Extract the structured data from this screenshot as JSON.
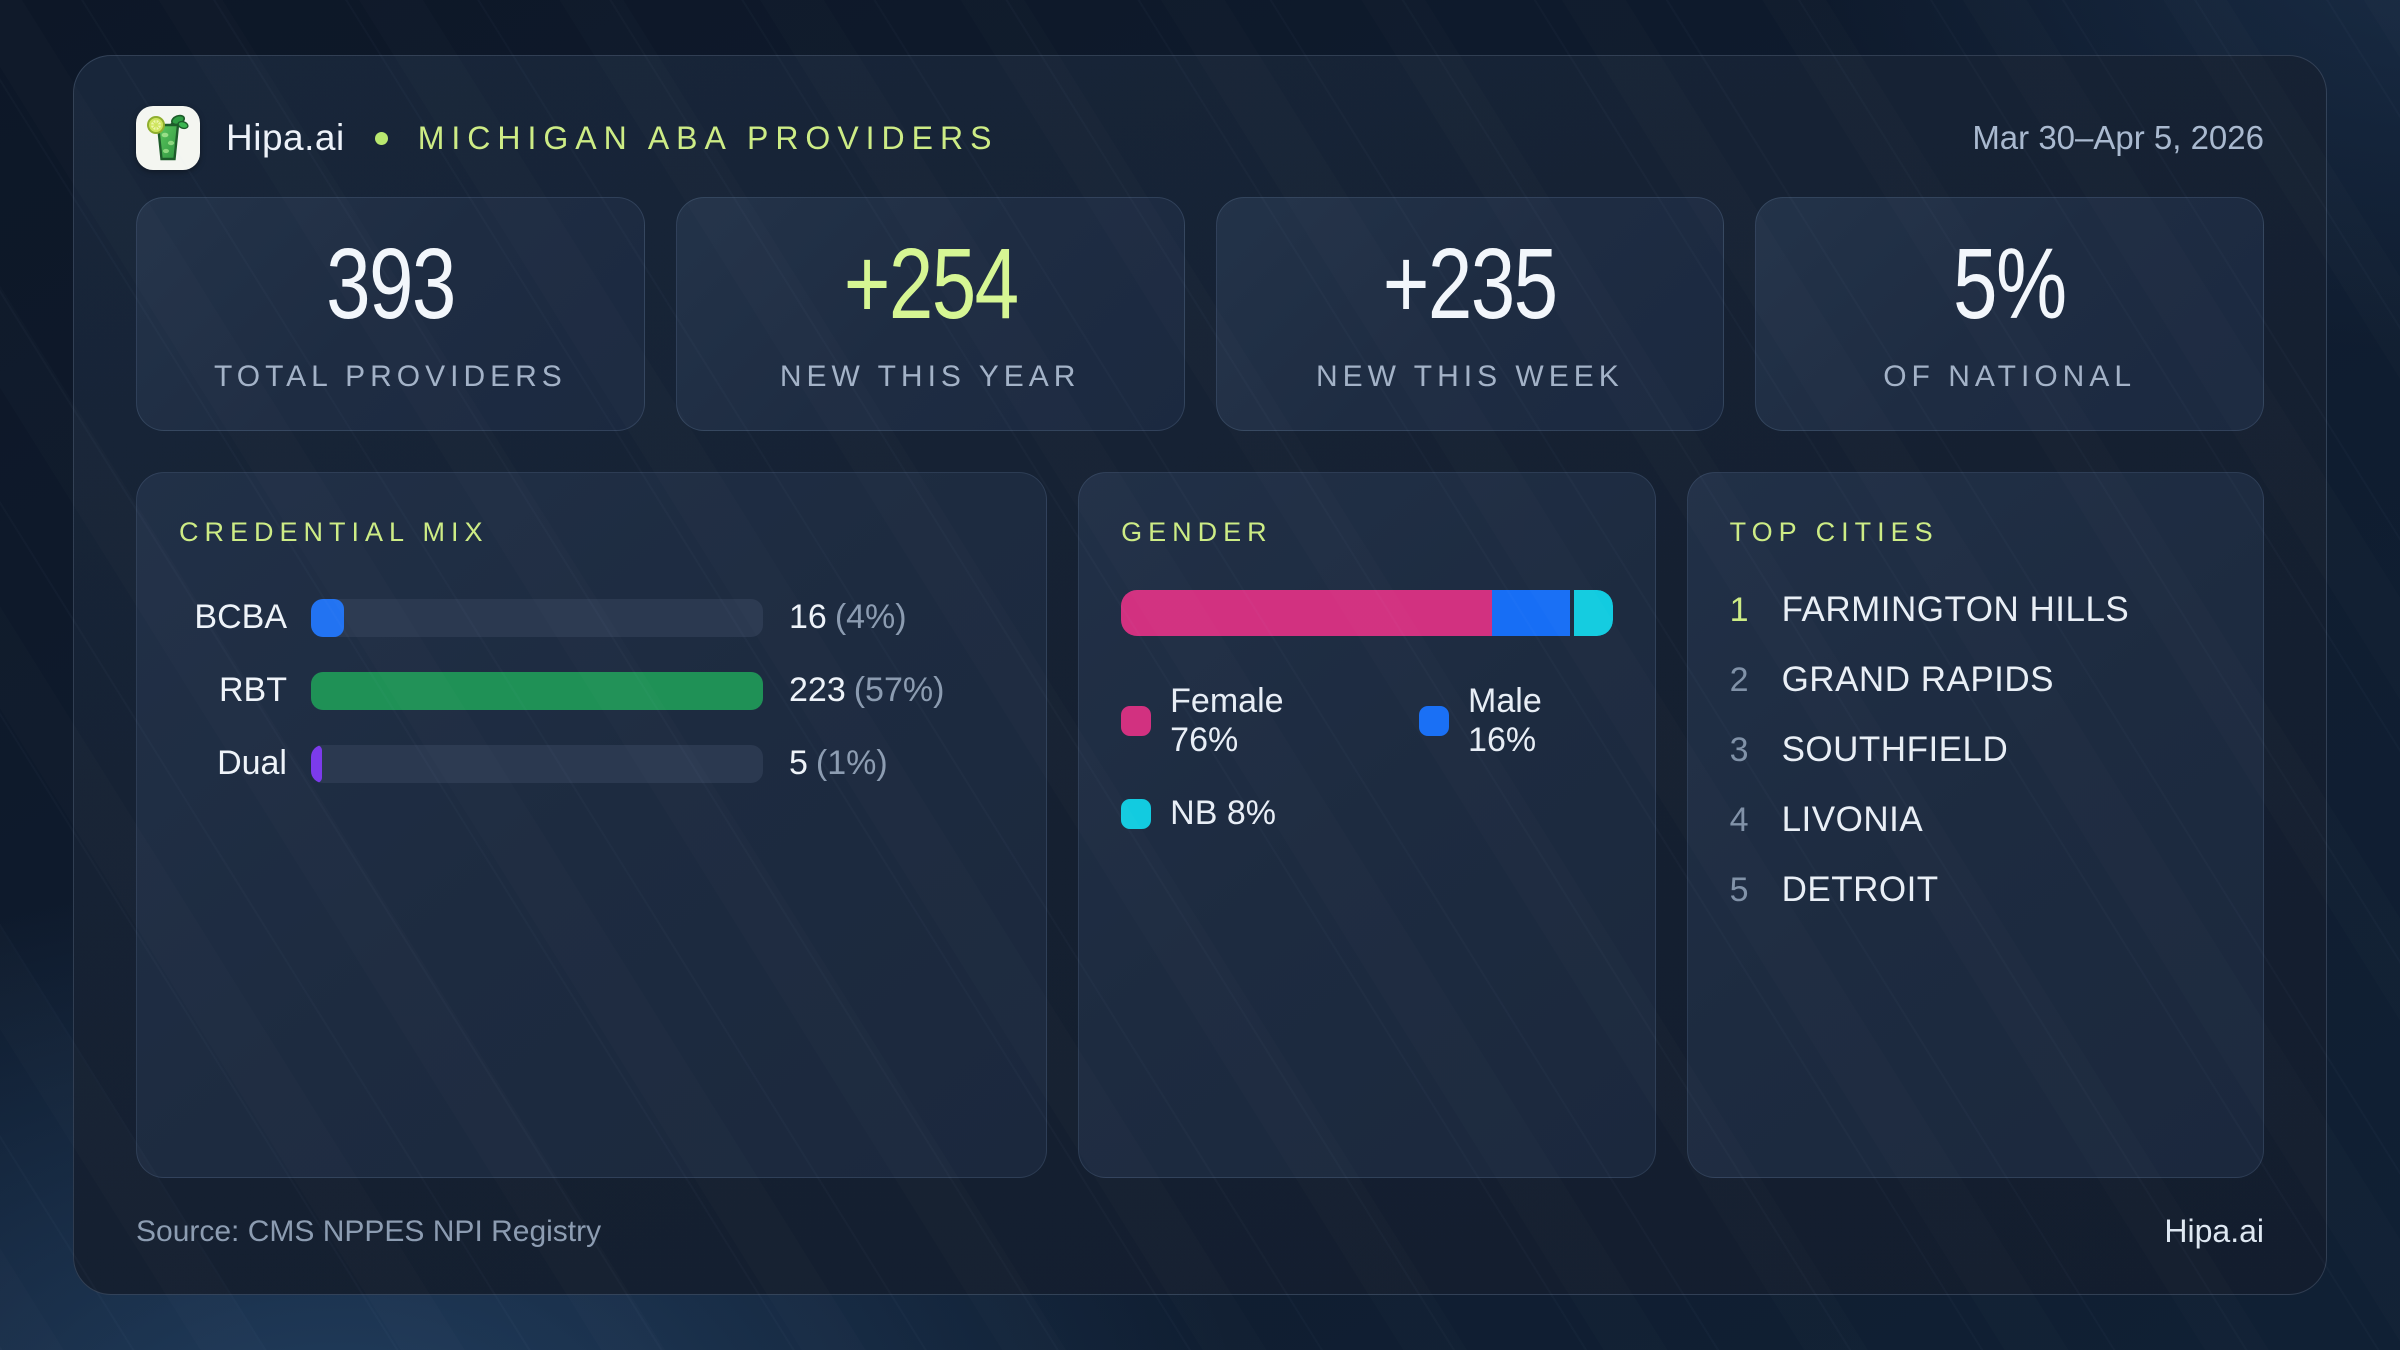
{
  "header": {
    "brand": "Hipa.ai",
    "title": "MICHIGAN ABA PROVIDERS",
    "date_range": "Mar 30–Apr 5, 2026"
  },
  "accent_color": "#cdec85",
  "stats": [
    {
      "value": "393",
      "label": "TOTAL PROVIDERS",
      "value_color": "#f2f6fb"
    },
    {
      "value": "+254",
      "label": "NEW THIS YEAR",
      "value_color": "#d6f693"
    },
    {
      "value": "+235",
      "label": "NEW THIS WEEK",
      "value_color": "#f2f6fb"
    },
    {
      "value": "5%",
      "label": "OF NATIONAL",
      "value_color": "#f2f6fb"
    }
  ],
  "credential_mix": {
    "title": "CREDENTIAL MIX",
    "rows": [
      {
        "label": "BCBA",
        "value_text": "16",
        "pct_text": "(4%)",
        "width_pct": 7.2,
        "color": "#2273f2"
      },
      {
        "label": "RBT",
        "value_text": "223",
        "pct_text": "(57%)",
        "width_pct": 100,
        "color": "#1f9156"
      },
      {
        "label": "Dual",
        "value_text": "5",
        "pct_text": "(1%)",
        "width_pct": 2.4,
        "color": "#7c3bec"
      }
    ]
  },
  "gender": {
    "title": "GENDER",
    "segments": [
      {
        "label": "Female",
        "width_pct": 76,
        "color": "#d23180"
      },
      {
        "label": "Male",
        "width_pct": 16,
        "color": "#176ef5"
      },
      {
        "label": "NB",
        "width_pct": 8,
        "color": "#12cbe0"
      }
    ],
    "legend": [
      {
        "text": "Female 76%",
        "color": "#d23180"
      },
      {
        "text": "Male 16%",
        "color": "#176ef5"
      },
      {
        "text": "NB 8%",
        "color": "#12cbe0"
      }
    ]
  },
  "top_cities": {
    "title": "TOP CITIES",
    "items": [
      {
        "rank": "1",
        "name": "FARMINGTON HILLS",
        "rank_color": "#cdec85"
      },
      {
        "rank": "2",
        "name": "GRAND RAPIDS",
        "rank_color": "#8192a8"
      },
      {
        "rank": "3",
        "name": "SOUTHFIELD",
        "rank_color": "#8192a8"
      },
      {
        "rank": "4",
        "name": "LIVONIA",
        "rank_color": "#8192a8"
      },
      {
        "rank": "5",
        "name": "DETROIT",
        "rank_color": "#8192a8"
      }
    ]
  },
  "footer": {
    "source": "Source: CMS NPPES NPI Registry",
    "brand": "Hipa.ai"
  },
  "chart_data": [
    {
      "type": "bar",
      "orientation": "horizontal",
      "title": "CREDENTIAL MIX",
      "categories": [
        "BCBA",
        "RBT",
        "Dual"
      ],
      "values": [
        16,
        223,
        5
      ],
      "percent_of_total": [
        4,
        57,
        1
      ],
      "colors": [
        "#2273f2",
        "#1f9156",
        "#7c3bec"
      ],
      "note": "bar lengths scaled to max value 223"
    },
    {
      "type": "bar",
      "subtype": "stacked-single-row",
      "title": "GENDER",
      "categories": [
        "Female",
        "Male",
        "NB"
      ],
      "values": [
        76,
        16,
        8
      ],
      "unit": "%",
      "colors": [
        "#d23180",
        "#176ef5",
        "#12cbe0"
      ],
      "legend_position": "below"
    }
  ]
}
